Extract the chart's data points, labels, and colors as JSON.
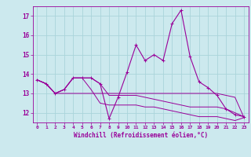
{
  "title": "",
  "xlabel": "Windchill (Refroidissement éolien,°C)",
  "background_color": "#cce9ee",
  "grid_color": "#aad4da",
  "line_color": "#990099",
  "x_hours": [
    0,
    1,
    2,
    3,
    4,
    5,
    6,
    7,
    8,
    9,
    10,
    11,
    12,
    13,
    14,
    15,
    16,
    17,
    18,
    19,
    20,
    21,
    22,
    23
  ],
  "main_line": [
    13.7,
    13.5,
    13.0,
    13.2,
    13.8,
    13.8,
    13.8,
    13.5,
    11.7,
    12.8,
    14.1,
    15.5,
    14.7,
    15.0,
    14.7,
    16.6,
    17.3,
    14.9,
    13.6,
    13.3,
    12.9,
    12.2,
    11.9,
    11.8
  ],
  "line2": [
    13.7,
    13.5,
    13.0,
    13.2,
    13.8,
    13.8,
    13.8,
    13.5,
    12.9,
    12.9,
    12.9,
    12.9,
    12.8,
    12.7,
    12.6,
    12.5,
    12.4,
    12.3,
    12.3,
    12.3,
    12.3,
    12.2,
    12.0,
    11.8
  ],
  "line3": [
    13.7,
    13.5,
    13.0,
    13.2,
    13.8,
    13.8,
    13.2,
    12.5,
    12.4,
    12.4,
    12.4,
    12.4,
    12.3,
    12.3,
    12.2,
    12.1,
    12.0,
    11.9,
    11.8,
    11.8,
    11.8,
    11.7,
    11.6,
    11.75
  ],
  "line4": [
    13.7,
    13.5,
    13.0,
    13.0,
    13.0,
    13.0,
    13.0,
    13.0,
    13.0,
    13.0,
    13.0,
    13.0,
    13.0,
    13.0,
    13.0,
    13.0,
    13.0,
    13.0,
    13.0,
    13.0,
    13.0,
    12.9,
    12.8,
    11.75
  ],
  "ylim": [
    11.5,
    17.5
  ],
  "yticks": [
    12,
    13,
    14,
    15,
    16,
    17
  ],
  "xlim": [
    -0.5,
    23.5
  ],
  "xtick_labels": [
    "0",
    "1",
    "2",
    "3",
    "4",
    "5",
    "6",
    "7",
    "8",
    "9",
    "10",
    "11",
    "12",
    "13",
    "14",
    "15",
    "16",
    "17",
    "18",
    "19",
    "20",
    "21",
    "22",
    "23"
  ]
}
